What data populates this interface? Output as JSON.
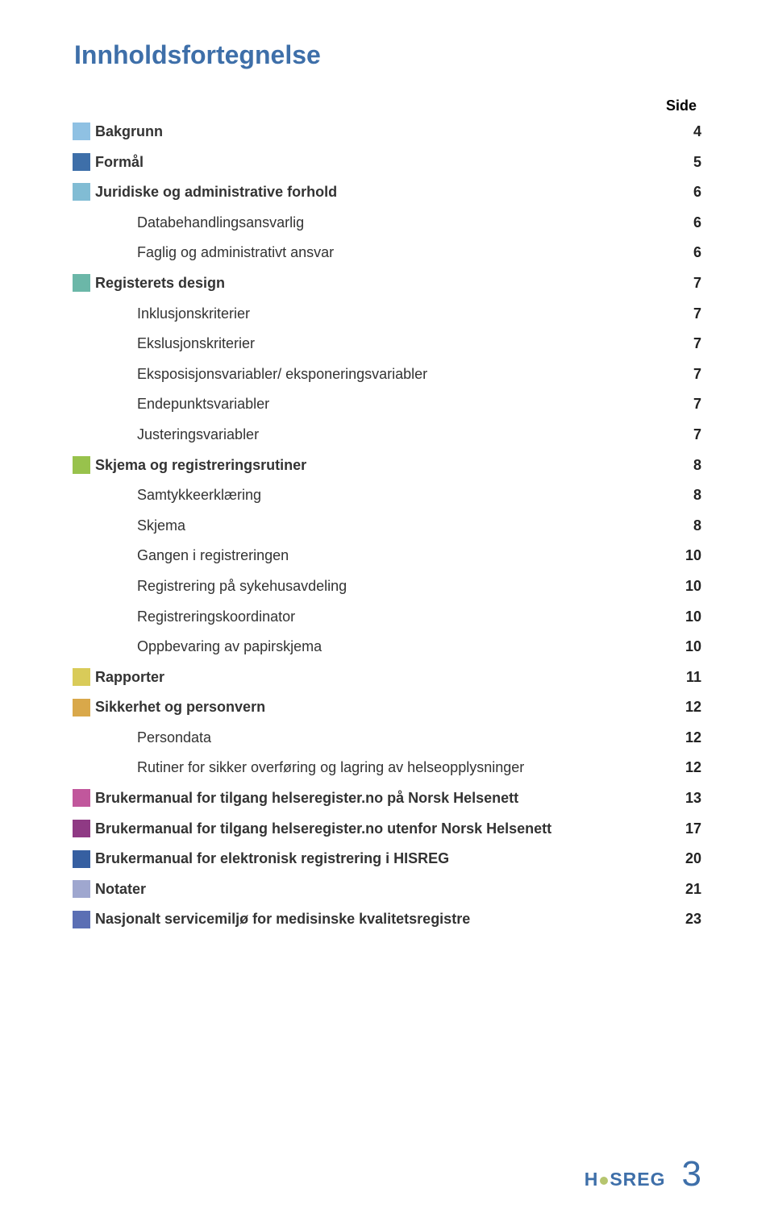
{
  "title": "Innholdsfortegnelse",
  "side_label": "Side",
  "logo_text": "H SREG",
  "footer_page": "3",
  "colors": {
    "title": "#3e6fa9",
    "logo_text": "#3e6fa9",
    "logo_dot": "#b6c56f",
    "page_num": "#3e6fa9",
    "text": "#333333"
  },
  "rows": [
    {
      "square": "#8fc1e3",
      "label": "Bakgrunn",
      "bold": true,
      "indent": 0,
      "page": "4"
    },
    {
      "square": "#3e6fa9",
      "label": "Formål",
      "bold": true,
      "indent": 0,
      "page": "5"
    },
    {
      "square": "#81bcd4",
      "label": "Juridiske og administrative forhold",
      "bold": true,
      "indent": 0,
      "page": "6"
    },
    {
      "square": "",
      "label": "Databehandlingsansvarlig",
      "bold": false,
      "indent": 1,
      "page": "6"
    },
    {
      "square": "",
      "label": "Faglig og administrativt ansvar",
      "bold": false,
      "indent": 1,
      "page": "6"
    },
    {
      "square": "#6bb7a8",
      "label": "Registerets design",
      "bold": true,
      "indent": 0,
      "page": "7"
    },
    {
      "square": "",
      "label": "Inklusjonskriterier",
      "bold": false,
      "indent": 1,
      "page": "7"
    },
    {
      "square": "",
      "label": "Ekslusjonskriterier",
      "bold": false,
      "indent": 1,
      "page": "7"
    },
    {
      "square": "",
      "label": "Eksposisjonsvariabler/ eksponeringsvariabler",
      "bold": false,
      "indent": 1,
      "page": "7"
    },
    {
      "square": "",
      "label": "Endepunktsvariabler",
      "bold": false,
      "indent": 1,
      "page": "7"
    },
    {
      "square": "",
      "label": "Justeringsvariabler",
      "bold": false,
      "indent": 1,
      "page": "7"
    },
    {
      "square": "#98c24c",
      "label": "Skjema og registreringsrutiner",
      "bold": true,
      "indent": 0,
      "page": "8"
    },
    {
      "square": "",
      "label": "Samtykkeerklæring",
      "bold": false,
      "indent": 1,
      "page": "8"
    },
    {
      "square": "",
      "label": "Skjema",
      "bold": false,
      "indent": 1,
      "page": "8"
    },
    {
      "square": "",
      "label": "Gangen i registreringen",
      "bold": false,
      "indent": 1,
      "page": "10"
    },
    {
      "square": "",
      "label": "Registrering på sykehusavdeling",
      "bold": false,
      "indent": 1,
      "page": "10"
    },
    {
      "square": "",
      "label": "Registreringskoordinator",
      "bold": false,
      "indent": 1,
      "page": "10"
    },
    {
      "square": "",
      "label": "Oppbevaring av papirskjema",
      "bold": false,
      "indent": 1,
      "page": "10"
    },
    {
      "square": "#d9cb59",
      "label": "Rapporter",
      "bold": true,
      "indent": 0,
      "page": "11"
    },
    {
      "square": "#d9a84a",
      "label": "Sikkerhet og personvern",
      "bold": true,
      "indent": 0,
      "page": "12"
    },
    {
      "square": "",
      "label": "Persondata",
      "bold": false,
      "indent": 1,
      "page": "12"
    },
    {
      "square": "",
      "label": "Rutiner for sikker overføring og lagring av helseopplysninger",
      "bold": false,
      "indent": 1,
      "page": "12"
    },
    {
      "square": "#c1579c",
      "label": "Brukermanual for tilgang helseregister.no på Norsk Helsenett",
      "bold": true,
      "indent": 0,
      "page": "13"
    },
    {
      "square": "#8f3a84",
      "label": "Brukermanual for tilgang helseregister.no utenfor Norsk Helsenett",
      "bold": true,
      "indent": 0,
      "page": "17"
    },
    {
      "square": "#365fa1",
      "label": "Brukermanual for elektronisk registrering i HISREG",
      "bold": true,
      "indent": 0,
      "page": "20"
    },
    {
      "square": "#9fa7cf",
      "label": "Notater",
      "bold": true,
      "indent": 0,
      "page": "21"
    },
    {
      "square": "#5b6fb4",
      "label": "Nasjonalt servicemiljø for medisinske kvalitetsregistre",
      "bold": true,
      "indent": 0,
      "page": "23"
    }
  ]
}
